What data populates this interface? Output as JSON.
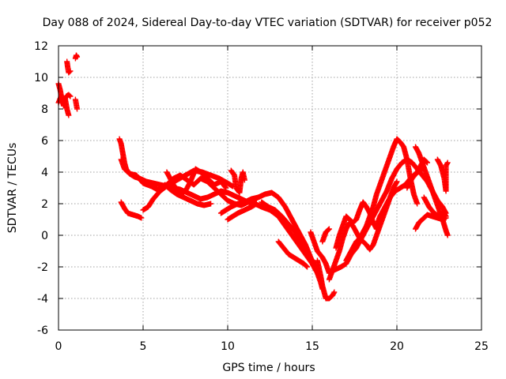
{
  "chart_data": {
    "type": "scatter",
    "title": "Day 088 of 2024, Sidereal Day-to-day VTEC variation (SDTVAR) for receiver p052",
    "xlabel": "GPS time / hours",
    "ylabel": "SDTVAR / TECUs",
    "xlim": [
      0,
      25
    ],
    "ylim": [
      -6,
      12
    ],
    "xticks": [
      0,
      5,
      10,
      15,
      20,
      25
    ],
    "yticks": [
      -6,
      -4,
      -2,
      0,
      2,
      4,
      6,
      8,
      10,
      12
    ],
    "grid": true,
    "marker": "+",
    "color": "#ff0000",
    "segments": [
      [
        [
          0.0,
          9.6
        ],
        [
          0.1,
          9.2
        ],
        [
          0.2,
          8.6
        ],
        [
          0.3,
          8.2
        ],
        [
          0.4,
          8.6
        ],
        [
          0.5,
          8.0
        ],
        [
          0.6,
          7.6
        ]
      ],
      [
        [
          0.0,
          8.4
        ],
        [
          0.15,
          8.8
        ],
        [
          0.3,
          8.4
        ],
        [
          0.45,
          8.8
        ],
        [
          0.6,
          8.9
        ],
        [
          0.7,
          8.8
        ]
      ],
      [
        [
          0.5,
          11.0
        ],
        [
          0.55,
          10.6
        ],
        [
          0.6,
          10.3
        ],
        [
          0.7,
          10.4
        ]
      ],
      [
        [
          1.0,
          11.2
        ],
        [
          1.05,
          11.4
        ],
        [
          1.1,
          11.3
        ]
      ],
      [
        [
          1.0,
          8.6
        ],
        [
          1.05,
          8.3
        ],
        [
          1.1,
          8.0
        ]
      ],
      [
        [
          3.6,
          6.1
        ],
        [
          3.7,
          5.8
        ],
        [
          3.8,
          5.2
        ],
        [
          3.9,
          4.6
        ],
        [
          4.0,
          4.2
        ],
        [
          4.2,
          3.9
        ],
        [
          4.5,
          3.7
        ],
        [
          4.8,
          3.6
        ],
        [
          5.2,
          3.4
        ],
        [
          5.6,
          3.3
        ],
        [
          6.0,
          3.2
        ],
        [
          6.4,
          3.1
        ],
        [
          6.8,
          3.0
        ],
        [
          7.2,
          2.9
        ],
        [
          7.6,
          2.7
        ],
        [
          8.0,
          2.5
        ],
        [
          8.4,
          2.3
        ],
        [
          8.8,
          2.4
        ],
        [
          9.2,
          2.6
        ],
        [
          9.6,
          2.8
        ],
        [
          10.0,
          2.7
        ],
        [
          10.4,
          2.5
        ],
        [
          10.8,
          2.3
        ],
        [
          11.2,
          2.1
        ],
        [
          11.6,
          2.0
        ],
        [
          12.0,
          1.8
        ],
        [
          12.5,
          1.6
        ],
        [
          13.0,
          1.2
        ],
        [
          13.4,
          0.6
        ],
        [
          13.8,
          0.0
        ],
        [
          14.2,
          -0.6
        ],
        [
          14.6,
          -1.2
        ],
        [
          15.0,
          -1.8
        ],
        [
          15.3,
          -2.4
        ],
        [
          15.5,
          -3.0
        ],
        [
          15.6,
          -3.4
        ]
      ],
      [
        [
          3.7,
          4.8
        ],
        [
          3.9,
          4.2
        ],
        [
          4.2,
          3.9
        ],
        [
          4.6,
          3.8
        ],
        [
          5.0,
          3.3
        ],
        [
          5.5,
          3.1
        ],
        [
          6.0,
          2.8
        ],
        [
          6.5,
          3.2
        ],
        [
          7.0,
          3.5
        ],
        [
          7.5,
          3.8
        ],
        [
          8.0,
          4.1
        ],
        [
          8.5,
          4.0
        ],
        [
          9.0,
          3.8
        ],
        [
          9.5,
          3.6
        ],
        [
          10.0,
          3.3
        ],
        [
          10.3,
          3.1
        ]
      ],
      [
        [
          3.7,
          2.1
        ],
        [
          3.9,
          1.7
        ],
        [
          4.1,
          1.4
        ],
        [
          4.4,
          1.3
        ],
        [
          4.7,
          1.2
        ],
        [
          4.9,
          1.1
        ]
      ],
      [
        [
          5.0,
          1.6
        ],
        [
          5.3,
          1.8
        ],
        [
          5.6,
          2.3
        ],
        [
          6.0,
          2.8
        ],
        [
          6.4,
          3.2
        ],
        [
          6.8,
          3.6
        ],
        [
          7.2,
          3.8
        ],
        [
          7.6,
          3.5
        ],
        [
          8.0,
          3.2
        ],
        [
          8.4,
          3.6
        ],
        [
          8.8,
          3.4
        ],
        [
          9.2,
          3.0
        ],
        [
          9.6,
          2.6
        ],
        [
          10.0,
          2.2
        ],
        [
          10.4,
          2.0
        ],
        [
          10.8,
          1.9
        ],
        [
          11.2,
          2.1
        ],
        [
          11.6,
          2.3
        ],
        [
          12.0,
          2.5
        ]
      ],
      [
        [
          6.0,
          3.0
        ],
        [
          6.3,
          3.2
        ],
        [
          6.6,
          2.9
        ],
        [
          7.0,
          2.6
        ],
        [
          7.4,
          2.4
        ],
        [
          7.8,
          2.2
        ],
        [
          8.2,
          2.0
        ],
        [
          8.6,
          1.9
        ],
        [
          9.0,
          2.0
        ]
      ],
      [
        [
          6.4,
          4.0
        ],
        [
          6.6,
          3.6
        ],
        [
          6.9,
          3.0
        ],
        [
          7.2,
          2.6
        ],
        [
          7.5,
          2.8
        ],
        [
          7.8,
          3.4
        ],
        [
          8.1,
          4.2
        ],
        [
          8.4,
          4.0
        ],
        [
          8.8,
          3.6
        ],
        [
          9.2,
          3.2
        ],
        [
          9.6,
          3.4
        ],
        [
          9.9,
          3.0
        ]
      ],
      [
        [
          9.6,
          1.4
        ],
        [
          9.9,
          1.6
        ],
        [
          10.2,
          1.8
        ],
        [
          10.6,
          2.0
        ],
        [
          11.0,
          2.1
        ],
        [
          11.4,
          2.3
        ],
        [
          11.8,
          2.4
        ],
        [
          12.2,
          2.6
        ],
        [
          12.6,
          2.7
        ],
        [
          13.0,
          2.4
        ],
        [
          13.4,
          1.8
        ],
        [
          13.8,
          1.0
        ],
        [
          14.2,
          0.2
        ],
        [
          14.6,
          -0.6
        ],
        [
          14.9,
          -1.4
        ],
        [
          15.2,
          -2.0
        ],
        [
          15.4,
          -2.6
        ]
      ],
      [
        [
          10.0,
          1.0
        ],
        [
          10.3,
          1.2
        ],
        [
          10.6,
          1.4
        ],
        [
          11.0,
          1.6
        ],
        [
          11.4,
          1.8
        ],
        [
          11.7,
          2.0
        ]
      ],
      [
        [
          10.2,
          4.1
        ],
        [
          10.4,
          3.8
        ],
        [
          10.5,
          3.0
        ],
        [
          10.7,
          2.7
        ],
        [
          10.8,
          3.6
        ],
        [
          10.9,
          4.0
        ],
        [
          11.0,
          3.5
        ]
      ],
      [
        [
          12.0,
          2.1
        ],
        [
          12.4,
          1.8
        ],
        [
          12.8,
          1.6
        ],
        [
          13.2,
          1.2
        ],
        [
          13.6,
          0.7
        ],
        [
          14.0,
          0.2
        ],
        [
          14.4,
          -0.6
        ],
        [
          14.8,
          -1.2
        ],
        [
          15.0,
          -1.8
        ],
        [
          15.2,
          -2.2
        ]
      ],
      [
        [
          13.0,
          -0.4
        ],
        [
          13.3,
          -0.8
        ],
        [
          13.6,
          -1.2
        ],
        [
          13.9,
          -1.4
        ],
        [
          14.2,
          -1.6
        ],
        [
          14.5,
          -1.8
        ],
        [
          14.7,
          -2.0
        ]
      ],
      [
        [
          14.9,
          0.2
        ],
        [
          15.1,
          -0.4
        ],
        [
          15.3,
          -1.0
        ],
        [
          15.6,
          -1.4
        ],
        [
          15.8,
          -1.8
        ],
        [
          16.0,
          -2.4
        ],
        [
          16.3,
          -2.2
        ],
        [
          16.7,
          -2.0
        ],
        [
          17.0,
          -1.8
        ],
        [
          17.3,
          -1.2
        ],
        [
          17.6,
          -0.8
        ],
        [
          17.9,
          -0.2
        ],
        [
          18.2,
          0.4
        ],
        [
          18.5,
          1.0
        ],
        [
          18.8,
          1.6
        ],
        [
          19.1,
          2.2
        ],
        [
          19.4,
          2.8
        ],
        [
          19.7,
          3.6
        ],
        [
          20.0,
          4.2
        ],
        [
          20.3,
          4.6
        ],
        [
          20.6,
          4.8
        ],
        [
          20.9,
          4.6
        ],
        [
          21.2,
          4.2
        ],
        [
          21.5,
          3.8
        ],
        [
          21.8,
          3.4
        ],
        [
          22.1,
          2.8
        ],
        [
          22.4,
          2.2
        ],
        [
          22.7,
          1.8
        ],
        [
          22.9,
          1.4
        ]
      ],
      [
        [
          15.3,
          -1.6
        ],
        [
          15.5,
          -2.6
        ],
        [
          15.6,
          -3.2
        ],
        [
          15.7,
          -3.6
        ],
        [
          15.8,
          -4.0
        ],
        [
          16.0,
          -4.0
        ],
        [
          16.2,
          -3.8
        ],
        [
          16.3,
          -3.6
        ]
      ],
      [
        [
          15.6,
          -0.4
        ],
        [
          15.8,
          0.2
        ],
        [
          16.0,
          0.4
        ]
      ],
      [
        [
          16.0,
          -2.8
        ],
        [
          16.2,
          -2.2
        ],
        [
          16.4,
          -1.6
        ],
        [
          16.6,
          -1.0
        ],
        [
          16.8,
          -0.2
        ],
        [
          17.0,
          0.4
        ],
        [
          17.2,
          0.8
        ],
        [
          17.4,
          0.6
        ],
        [
          17.6,
          0.2
        ],
        [
          17.8,
          -0.2
        ],
        [
          18.0,
          -0.4
        ],
        [
          18.2,
          -0.6
        ],
        [
          18.4,
          -0.9
        ],
        [
          18.6,
          -0.6
        ],
        [
          18.8,
          0.0
        ],
        [
          19.0,
          0.6
        ],
        [
          19.2,
          1.2
        ],
        [
          19.4,
          1.8
        ],
        [
          19.6,
          2.4
        ],
        [
          19.8,
          3.0
        ],
        [
          20.0,
          3.4
        ]
      ],
      [
        [
          16.4,
          -0.8
        ],
        [
          16.6,
          0.0
        ],
        [
          16.8,
          0.6
        ],
        [
          17.0,
          1.2
        ],
        [
          17.2,
          1.0
        ],
        [
          17.4,
          0.8
        ],
        [
          17.6,
          1.0
        ],
        [
          17.8,
          1.6
        ],
        [
          18.0,
          2.1
        ],
        [
          18.2,
          1.8
        ],
        [
          18.4,
          1.4
        ],
        [
          18.6,
          0.8
        ],
        [
          18.8,
          0.4
        ]
      ],
      [
        [
          17.0,
          -1.6
        ],
        [
          17.2,
          -1.2
        ],
        [
          17.4,
          -0.8
        ],
        [
          17.6,
          -0.4
        ],
        [
          17.8,
          -0.2
        ],
        [
          18.0,
          0.2
        ],
        [
          18.2,
          0.6
        ],
        [
          18.4,
          1.2
        ],
        [
          18.6,
          1.8
        ],
        [
          18.8,
          2.6
        ],
        [
          19.0,
          3.2
        ],
        [
          19.2,
          3.8
        ],
        [
          19.4,
          4.4
        ],
        [
          19.6,
          5.0
        ],
        [
          19.8,
          5.6
        ],
        [
          20.0,
          6.1
        ],
        [
          20.2,
          5.9
        ],
        [
          20.4,
          5.6
        ],
        [
          20.6,
          4.8
        ],
        [
          20.8,
          3.6
        ],
        [
          21.0,
          2.6
        ],
        [
          21.2,
          2.0
        ]
      ],
      [
        [
          18.8,
          0.6
        ],
        [
          19.0,
          1.2
        ],
        [
          19.3,
          1.8
        ],
        [
          19.6,
          2.4
        ],
        [
          19.9,
          2.8
        ],
        [
          20.2,
          3.0
        ],
        [
          20.5,
          3.2
        ],
        [
          20.8,
          3.6
        ],
        [
          21.1,
          3.9
        ],
        [
          21.4,
          4.1
        ],
        [
          21.6,
          4.3
        ]
      ],
      [
        [
          20.6,
          3.0
        ],
        [
          20.9,
          3.6
        ],
        [
          21.2,
          4.0
        ],
        [
          21.4,
          4.4
        ],
        [
          21.6,
          4.8
        ],
        [
          21.8,
          4.6
        ]
      ],
      [
        [
          21.1,
          0.4
        ],
        [
          21.3,
          0.8
        ],
        [
          21.5,
          1.0
        ],
        [
          21.8,
          1.3
        ],
        [
          22.1,
          1.2
        ],
        [
          22.4,
          1.1
        ],
        [
          22.7,
          1.0
        ],
        [
          22.9,
          1.1
        ]
      ],
      [
        [
          21.1,
          5.6
        ],
        [
          21.3,
          5.2
        ],
        [
          21.5,
          4.6
        ],
        [
          21.7,
          4.0
        ],
        [
          21.9,
          3.4
        ],
        [
          22.1,
          2.8
        ],
        [
          22.3,
          2.2
        ],
        [
          22.5,
          1.6
        ],
        [
          22.7,
          1.0
        ],
        [
          22.9,
          0.3
        ],
        [
          23.0,
          0.0
        ]
      ],
      [
        [
          21.6,
          2.4
        ],
        [
          21.9,
          1.8
        ],
        [
          22.2,
          1.4
        ],
        [
          22.5,
          1.2
        ],
        [
          22.8,
          1.4
        ],
        [
          22.9,
          1.2
        ]
      ],
      [
        [
          22.4,
          4.8
        ],
        [
          22.6,
          4.4
        ],
        [
          22.8,
          3.6
        ],
        [
          22.9,
          2.8
        ],
        [
          22.9,
          4.4
        ],
        [
          23.0,
          4.6
        ]
      ]
    ]
  }
}
